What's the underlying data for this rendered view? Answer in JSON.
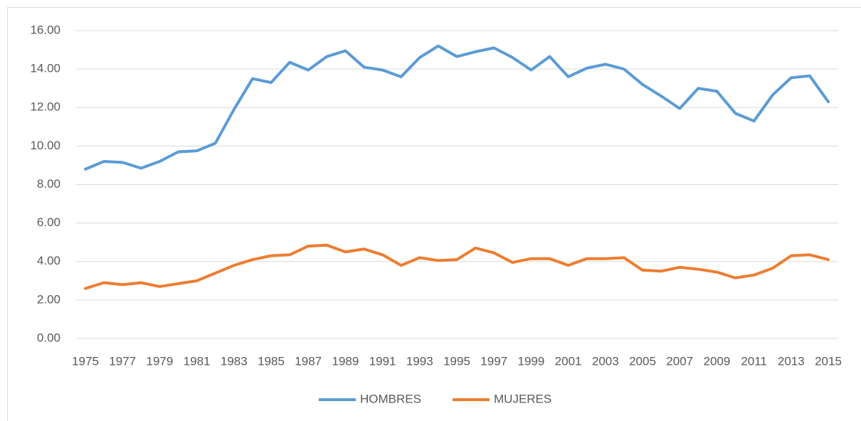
{
  "chart_data": {
    "type": "line",
    "categories": [
      "1975",
      null,
      "1977",
      null,
      "1979",
      null,
      "1981",
      null,
      "1983",
      null,
      "1985",
      null,
      "1987",
      null,
      "1989",
      null,
      "1991",
      null,
      "1993",
      null,
      "1995",
      null,
      "1997",
      null,
      "1999",
      null,
      "2001",
      null,
      "2003",
      null,
      "2005",
      null,
      "2007",
      null,
      "2009",
      null,
      "2011",
      null,
      "2013",
      null,
      "2015"
    ],
    "series": [
      {
        "name": "HOMBRES",
        "color": "#5b9bd5",
        "values": [
          8.8,
          9.2,
          9.15,
          8.85,
          9.2,
          9.7,
          9.75,
          10.15,
          11.9,
          13.5,
          13.3,
          14.35,
          13.95,
          14.65,
          14.95,
          14.1,
          13.95,
          13.6,
          14.6,
          15.2,
          14.65,
          14.9,
          15.1,
          14.6,
          13.95,
          14.65,
          13.6,
          14.05,
          14.25,
          14.0,
          13.2,
          12.6,
          11.95,
          13.0,
          12.85,
          11.7,
          11.3,
          12.65,
          13.55,
          13.65,
          12.3
        ]
      },
      {
        "name": "MUJERES",
        "color": "#ed7d31",
        "values": [
          2.6,
          2.9,
          2.8,
          2.9,
          2.7,
          2.85,
          3.0,
          3.4,
          3.8,
          4.1,
          4.3,
          4.35,
          4.8,
          4.85,
          4.5,
          4.65,
          4.35,
          3.8,
          4.2,
          4.05,
          4.1,
          4.7,
          4.45,
          3.95,
          4.15,
          4.15,
          3.8,
          4.15,
          4.15,
          4.2,
          3.55,
          3.5,
          3.7,
          3.6,
          3.45,
          3.15,
          3.3,
          3.65,
          4.3,
          4.35,
          4.1
        ]
      }
    ],
    "ylim": [
      0,
      16
    ],
    "yticks": [
      {
        "value": 0,
        "label": "0.00"
      },
      {
        "value": 2,
        "label": "2.00"
      },
      {
        "value": 4,
        "label": "4.00"
      },
      {
        "value": 6,
        "label": "6.00"
      },
      {
        "value": 8,
        "label": "8.00"
      },
      {
        "value": 10,
        "label": "10.00"
      },
      {
        "value": 12,
        "label": "12.00"
      },
      {
        "value": 14,
        "label": "14.00"
      },
      {
        "value": 16,
        "label": "16.00"
      }
    ],
    "grid": true,
    "legend": "bottom"
  }
}
